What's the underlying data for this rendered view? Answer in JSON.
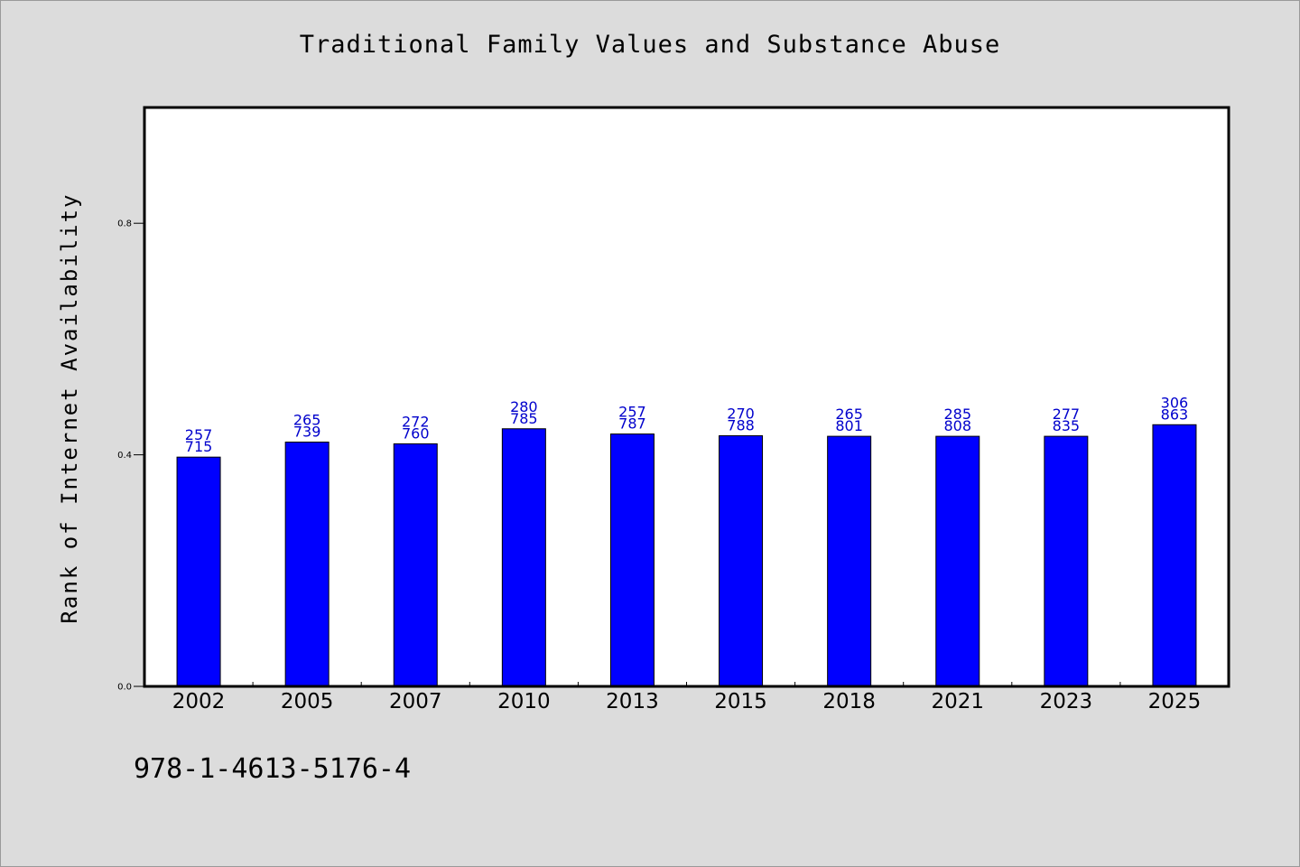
{
  "chart_data": {
    "type": "bar",
    "title": "Traditional Family Values and Substance Abuse",
    "ylabel": "Rank of Internet Availability",
    "xlabel": "",
    "ylim": [
      0,
      1.0
    ],
    "yticks": [
      0.0,
      0.4,
      0.8
    ],
    "ytick_labels": [
      "0.0",
      "0.4",
      "0.8"
    ],
    "grid": false,
    "categories": [
      "2002",
      "2005",
      "2007",
      "2010",
      "2013",
      "2015",
      "2018",
      "2021",
      "2023",
      "2025"
    ],
    "values": [
      0.396,
      0.422,
      0.419,
      0.445,
      0.436,
      0.433,
      0.432,
      0.432,
      0.432,
      0.452
    ],
    "data_labels": [
      [
        "257",
        "715"
      ],
      [
        "265",
        "739"
      ],
      [
        "272",
        "760"
      ],
      [
        "280",
        "785"
      ],
      [
        "257",
        "787"
      ],
      [
        "270",
        "788"
      ],
      [
        "265",
        "801"
      ],
      [
        "285",
        "808"
      ],
      [
        "277",
        "835"
      ],
      [
        "306",
        "863"
      ]
    ],
    "bar_color": "#0000ff",
    "label_color": "#0000cc"
  },
  "footnote": "978-1-4613-5176-4"
}
